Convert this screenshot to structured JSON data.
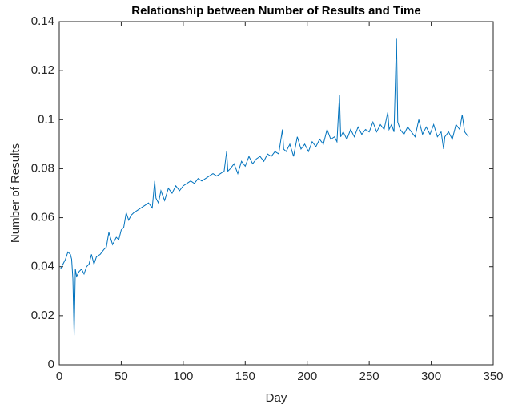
{
  "chart_data": {
    "type": "line",
    "title": "Relationship between Number of Results and Time",
    "x_label": "Day",
    "y_label": "Number of Results",
    "xlim": [
      0,
      350
    ],
    "xticks": [
      0,
      50,
      100,
      150,
      200,
      250,
      300,
      350
    ],
    "ylim": [
      0,
      0.14
    ],
    "yticks": [
      0,
      0.02,
      0.04,
      0.06,
      0.08,
      0.1,
      0.12,
      0.14
    ],
    "series": [
      {
        "color": "#0072bd",
        "x": [
          1,
          3,
          5,
          7,
          9,
          10,
          11,
          12,
          13,
          14,
          16,
          18,
          20,
          22,
          24,
          26,
          28,
          30,
          33,
          36,
          38,
          40,
          43,
          46,
          48,
          50,
          52,
          54,
          56,
          58,
          60,
          63,
          66,
          69,
          72,
          75,
          77,
          78,
          80,
          82,
          85,
          88,
          91,
          94,
          97,
          100,
          103,
          106,
          109,
          112,
          115,
          118,
          121,
          124,
          127,
          130,
          133,
          135,
          136,
          138,
          141,
          144,
          147,
          150,
          153,
          156,
          159,
          162,
          165,
          168,
          171,
          174,
          177,
          180,
          181,
          183,
          186,
          189,
          192,
          195,
          198,
          201,
          204,
          207,
          210,
          213,
          216,
          219,
          222,
          224,
          226,
          227,
          229,
          232,
          235,
          238,
          241,
          244,
          247,
          250,
          253,
          256,
          259,
          262,
          265,
          266,
          268,
          270,
          272,
          273,
          275,
          278,
          281,
          284,
          287,
          290,
          293,
          296,
          299,
          302,
          305,
          308,
          310,
          311,
          314,
          317,
          320,
          323,
          325,
          327,
          330
        ],
        "values": [
          0.039,
          0.041,
          0.043,
          0.046,
          0.045,
          0.043,
          0.035,
          0.012,
          0.039,
          0.036,
          0.038,
          0.039,
          0.037,
          0.04,
          0.041,
          0.045,
          0.041,
          0.044,
          0.045,
          0.047,
          0.048,
          0.054,
          0.049,
          0.052,
          0.051,
          0.055,
          0.056,
          0.062,
          0.059,
          0.061,
          0.062,
          0.063,
          0.064,
          0.065,
          0.066,
          0.064,
          0.075,
          0.068,
          0.066,
          0.071,
          0.067,
          0.072,
          0.07,
          0.073,
          0.071,
          0.073,
          0.074,
          0.075,
          0.074,
          0.076,
          0.075,
          0.076,
          0.077,
          0.078,
          0.077,
          0.078,
          0.079,
          0.087,
          0.079,
          0.08,
          0.082,
          0.078,
          0.083,
          0.081,
          0.085,
          0.082,
          0.084,
          0.085,
          0.083,
          0.086,
          0.085,
          0.087,
          0.086,
          0.096,
          0.088,
          0.087,
          0.09,
          0.085,
          0.093,
          0.088,
          0.09,
          0.087,
          0.091,
          0.089,
          0.092,
          0.09,
          0.096,
          0.092,
          0.093,
          0.091,
          0.11,
          0.093,
          0.095,
          0.092,
          0.096,
          0.093,
          0.097,
          0.094,
          0.096,
          0.095,
          0.099,
          0.095,
          0.098,
          0.096,
          0.103,
          0.096,
          0.098,
          0.095,
          0.133,
          0.099,
          0.096,
          0.094,
          0.097,
          0.095,
          0.093,
          0.1,
          0.094,
          0.097,
          0.094,
          0.098,
          0.093,
          0.095,
          0.088,
          0.093,
          0.095,
          0.092,
          0.098,
          0.096,
          0.102,
          0.095,
          0.093
        ]
      }
    ]
  }
}
